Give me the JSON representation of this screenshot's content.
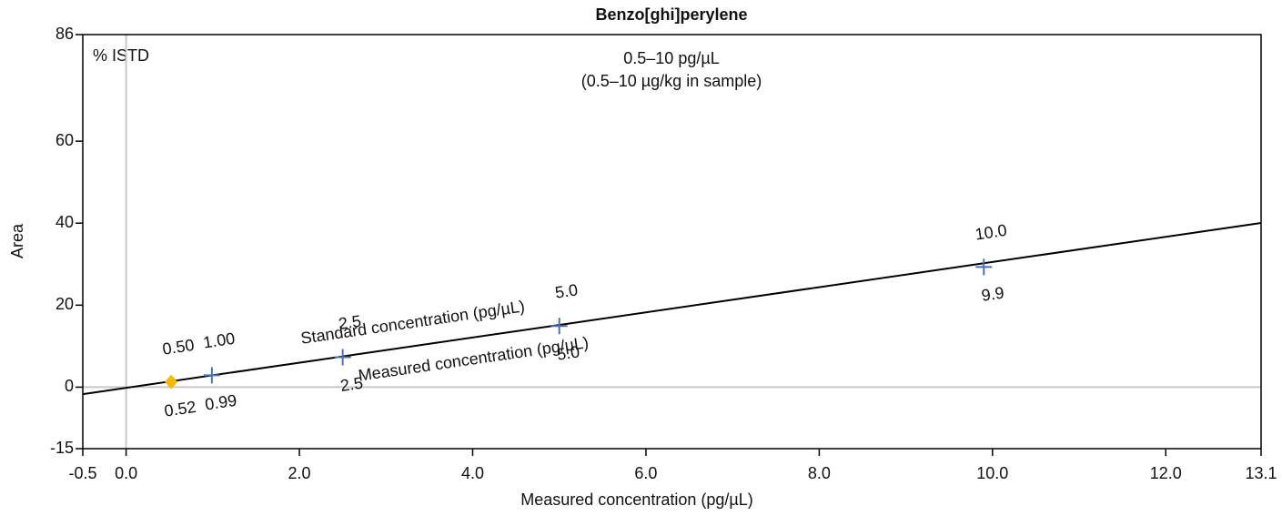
{
  "chart_data": {
    "type": "scatter",
    "title": "Benzo[ghi]perylene",
    "subtitle": "0.5–10 pg/µL",
    "subtitle2": "(0.5–10 µg/kg in sample)",
    "corner_label": "% ISTD",
    "x_label": "Measured  concentration (pg/µL)",
    "y_label": "Area",
    "xlim": [
      -0.5,
      13.1
    ],
    "ylim": [
      -15,
      86
    ],
    "xticks": [
      -0.5,
      {
        "value": 0,
        "label": "0.0"
      },
      {
        "value": 2,
        "label": "2.0"
      },
      {
        "value": 4,
        "label": "4.0"
      },
      {
        "value": 6,
        "label": "6.0"
      },
      {
        "value": 8,
        "label": "8.0"
      },
      {
        "value": 10,
        "label": "10.0"
      },
      {
        "value": 12,
        "label": "12.0"
      },
      13.1
    ],
    "yticks": [
      -15,
      0,
      20,
      40,
      60,
      86
    ],
    "zero_lines": true,
    "line_labels": [
      "Standard concentration (pg/µL)",
      "Measured  concentration (pg/µL)"
    ],
    "fit": {
      "slope": 3.07,
      "intercept": -0.17,
      "color": "#000000"
    },
    "series": [
      {
        "x": [
          0.52,
          0.99,
          2.5,
          5.0,
          9.9
        ],
        "x_labels": [
          "0.52",
          "0.99",
          "2.5",
          "5.0",
          "9.9"
        ],
        "values": [
          1.3,
          2.9,
          7.3,
          14.9,
          29.3
        ],
        "standard_labels": [
          "0.50",
          "1.00",
          "2.5",
          "5.0",
          "10.0"
        ],
        "markers": [
          "diamond",
          "cross",
          "cross",
          "cross",
          "cross"
        ],
        "colors": [
          "#f5b800",
          "#4a72b0",
          "#4a72b0",
          "#4a72b0",
          "#4a72b0"
        ]
      }
    ]
  }
}
